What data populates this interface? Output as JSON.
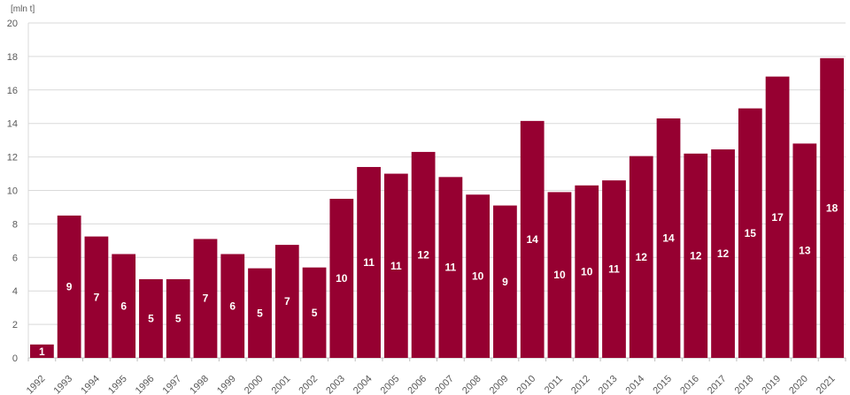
{
  "chart_data": {
    "type": "bar",
    "title": "",
    "xlabel": "",
    "ylabel": "[mln t]",
    "ylim": [
      0,
      20
    ],
    "y_ticks": [
      "0",
      "2",
      "4",
      "6",
      "8",
      "10",
      "12",
      "14",
      "16",
      "18",
      "20"
    ],
    "grid": true,
    "bar_color": "#960031",
    "label_color": "#ffffff",
    "categories": [
      "1992",
      "1993",
      "1994",
      "1995",
      "1996",
      "1997",
      "1998",
      "1999",
      "2000",
      "2001",
      "2002",
      "2003",
      "2004",
      "2005",
      "2006",
      "2007",
      "2008",
      "2009",
      "2010",
      "2011",
      "2012",
      "2013",
      "2014",
      "2015",
      "2016",
      "2017",
      "2018",
      "2019",
      "2020",
      "2021"
    ],
    "values": [
      0.8,
      8.5,
      7.25,
      6.2,
      4.7,
      4.7,
      7.1,
      6.2,
      5.35,
      6.75,
      5.4,
      9.5,
      11.4,
      11.0,
      12.3,
      10.8,
      9.75,
      9.1,
      14.15,
      9.9,
      10.3,
      10.6,
      12.05,
      14.3,
      12.2,
      12.45,
      14.9,
      16.8,
      12.8,
      17.9
    ],
    "data_labels": [
      "1",
      "9",
      "7",
      "6",
      "5",
      "5",
      "7",
      "6",
      "5",
      "7",
      "5",
      "10",
      "11",
      "11",
      "12",
      "11",
      "10",
      "9",
      "14",
      "10",
      "10",
      "11",
      "12",
      "14",
      "12",
      "12",
      "15",
      "17",
      "13",
      "18"
    ]
  }
}
